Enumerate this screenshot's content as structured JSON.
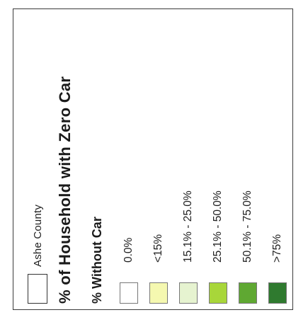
{
  "legend": {
    "county": {
      "label": "Ashe County",
      "color": "#ffffff"
    },
    "title": "% of Household with Zero Car",
    "subtitle": "% Without Car",
    "classes": [
      {
        "label": "0.0%",
        "color": "#ffffff"
      },
      {
        "label": "<15%",
        "color": "#f5f8b0"
      },
      {
        "label": "15.1% - 25.0%",
        "color": "#e6f3d0"
      },
      {
        "label": "25.1% - 50.0%",
        "color": "#a8d63a"
      },
      {
        "label": "50.1% - 75.0%",
        "color": "#5fa832"
      },
      {
        "label": ">75%",
        "color": "#2f7a2f"
      }
    ]
  }
}
